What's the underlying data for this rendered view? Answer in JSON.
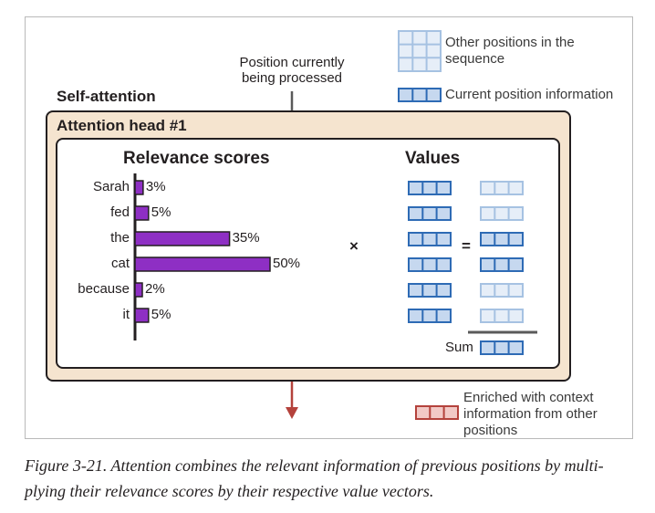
{
  "figure": {
    "title": "Self-attention",
    "position_note_line1": "Position currently",
    "position_note_line2": "being processed",
    "attention_head_label": "Attention head #1",
    "relevance_heading": "Relevance scores",
    "values_heading": "Values",
    "multiply_symbol": "×",
    "equals_symbol": "=",
    "sum_label": "Sum"
  },
  "legend": {
    "other_positions_line1": "Other positions in the",
    "other_positions_line2": "sequence",
    "current_position": "Current position information",
    "enriched_line1": "Enriched with context",
    "enriched_line2": "information from other",
    "enriched_line3": "positions"
  },
  "chart_data": {
    "type": "bar",
    "orientation": "horizontal",
    "title": "Relevance scores",
    "categories": [
      "Sarah",
      "fed",
      "the",
      "cat",
      "because",
      "it"
    ],
    "values": [
      3,
      5,
      35,
      50,
      2,
      5
    ],
    "value_labels": [
      "3%",
      "5%",
      "35%",
      "50%",
      "2%",
      "5%"
    ],
    "unit": "%",
    "xlim": [
      0,
      50
    ],
    "bar_color": "#8e2fc4",
    "weighted_value_rows_emphasized": [
      false,
      false,
      true,
      true,
      false,
      false
    ]
  },
  "colors": {
    "vector_strong_fill": "#c6d8ef",
    "vector_strong_stroke": "#2e6bb5",
    "vector_faded_fill": "#e6eef8",
    "vector_faded_stroke": "#a6c2e2",
    "enriched_fill": "#f2c9c6",
    "enriched_stroke": "#b4423c",
    "arrow_in": "#5a5a5a",
    "arrow_out": "#b4423c",
    "outer_fill": "#f5e4cf"
  },
  "caption": {
    "line1": "Figure 3-21. Attention combines the relevant information of previous positions by multi-",
    "line2": "plying their relevance scores by their respective value vectors."
  }
}
